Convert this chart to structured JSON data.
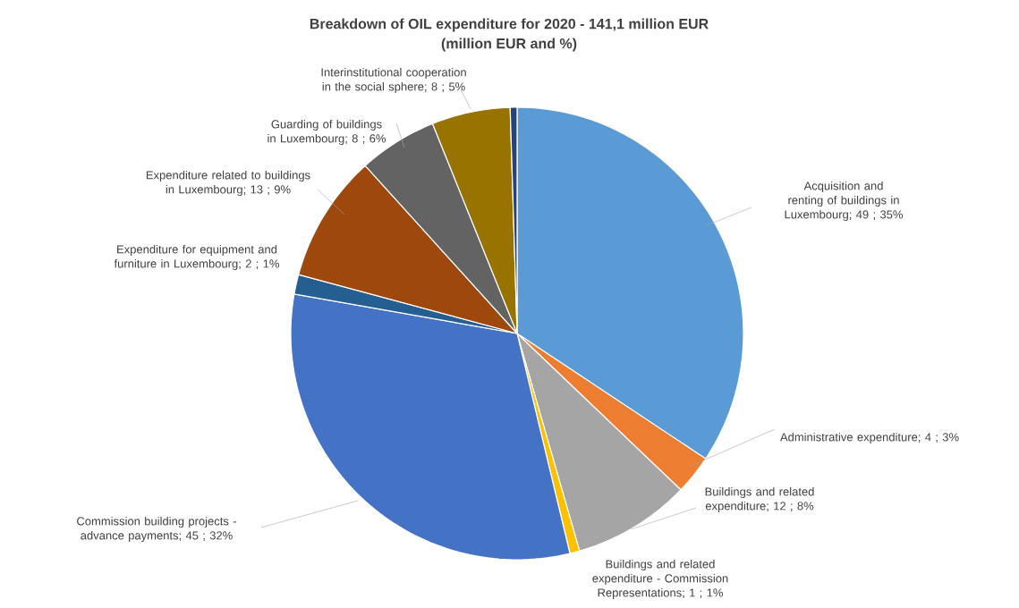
{
  "chart_data": {
    "type": "pie",
    "title": "Breakdown of OIL expenditure for 2020 - 141,1 million EUR",
    "subtitle": "(million EUR and %)",
    "categories": [
      "Acquisition and renting of buildings in Luxembourg",
      "Administrative expenditure",
      "Buildings and related expenditure",
      "Buildings and related expenditure - Commission Representations",
      "Commission building projects - advance payments",
      "Expenditure for equipment and furniture in Luxembourg",
      "Expenditure related to buildings in Luxembourg",
      "Guarding of buildings in Luxembourg",
      "Interinstitutional cooperation in the social sphere",
      null
    ],
    "values": [
      49,
      4,
      12,
      1,
      45,
      2,
      13,
      8,
      8,
      0.7
    ],
    "colors": [
      "#5b9bd5",
      "#ed7d31",
      "#a5a5a5",
      "#ffc000",
      "#4472c4",
      "#255e91",
      "#9e480e",
      "#636363",
      "#997300",
      "#264478"
    ],
    "value_labels": [
      "; 49 ; 35%",
      "; 4 ; 3%",
      "; 12 ; 8%",
      "; 1 ; 1%",
      "; 45 ; 32%",
      "; 2 ; 1%",
      "; 13 ; 9%",
      "; 8 ; 6%",
      "; 8 ; 5%",
      null
    ]
  }
}
